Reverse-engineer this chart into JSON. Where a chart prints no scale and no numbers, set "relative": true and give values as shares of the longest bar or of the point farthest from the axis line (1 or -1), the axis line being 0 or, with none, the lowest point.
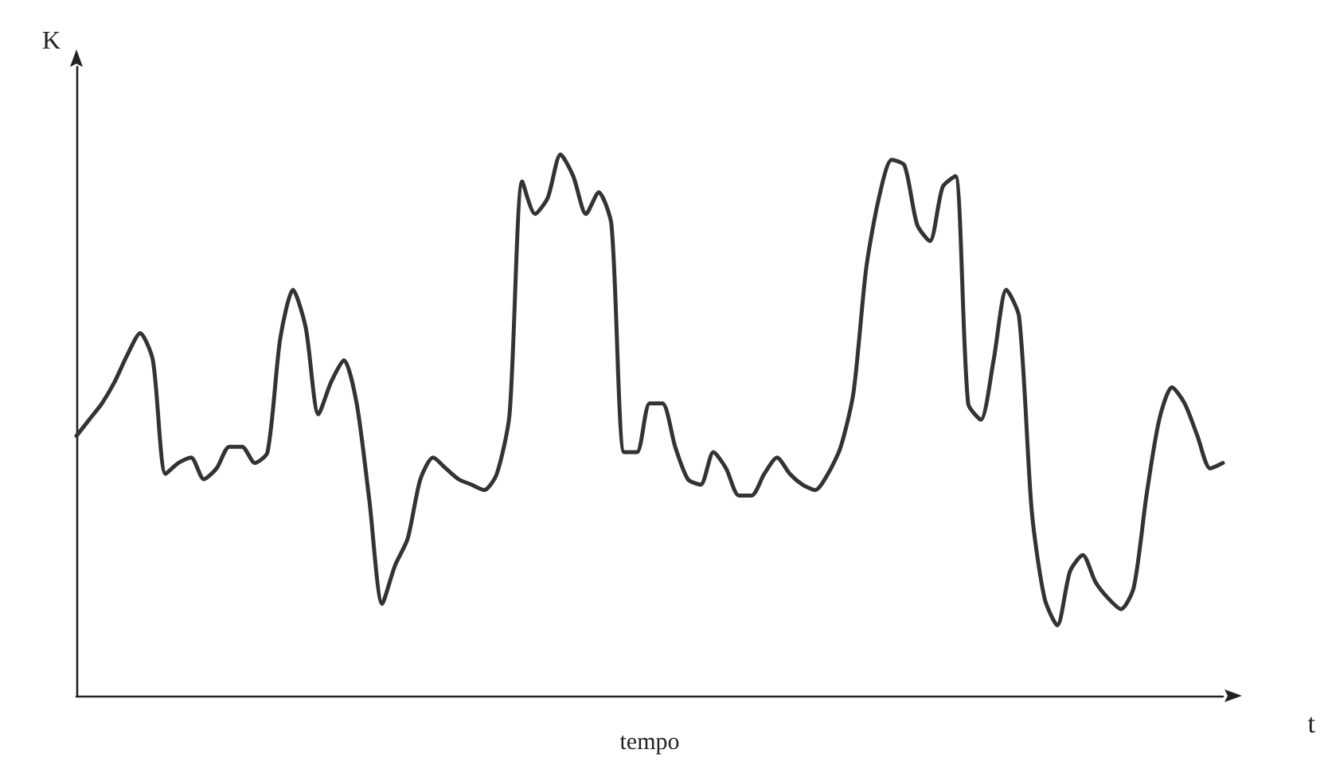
{
  "chart_data": {
    "type": "line",
    "relative": true,
    "xlabel": "tempo",
    "ylabel": "K",
    "annotations": [
      "t"
    ],
    "categories": [
      null,
      null,
      null,
      null,
      null,
      null,
      null,
      null,
      null,
      null,
      null,
      null,
      null,
      null,
      null,
      null,
      null,
      null,
      null,
      null,
      null,
      null,
      null,
      null,
      null,
      null,
      null,
      null,
      null,
      null,
      null,
      null,
      null,
      null,
      null,
      null,
      null,
      null,
      null,
      null,
      null,
      null,
      null,
      null,
      null,
      null,
      null,
      null,
      null,
      null,
      null,
      null,
      null,
      null,
      null,
      null,
      null,
      null,
      null,
      null,
      null,
      null,
      null,
      null,
      null,
      null,
      null,
      null,
      null,
      null,
      null,
      null,
      null,
      null,
      null,
      null,
      null,
      null,
      null,
      null,
      null,
      null,
      null,
      null,
      null,
      null,
      null,
      null,
      null,
      null,
      null
    ],
    "series": [
      {
        "color": "#333333",
        "values": [
          0.48,
          0.51,
          0.54,
          0.58,
          0.63,
          0.67,
          0.62,
          0.41,
          0.43,
          0.44,
          0.4,
          0.42,
          0.46,
          0.46,
          0.43,
          0.45,
          0.66,
          0.75,
          0.68,
          0.52,
          0.58,
          0.62,
          0.54,
          0.36,
          0.17,
          0.24,
          0.29,
          0.4,
          0.44,
          0.42,
          0.4,
          0.39,
          0.38,
          0.41,
          0.52,
          0.95,
          0.89,
          0.92,
          1,
          0.96,
          0.89,
          0.93,
          0.87,
          0.45,
          0.45,
          0.54,
          0.54,
          0.46,
          0.4,
          0.39,
          0.45,
          0.42,
          0.37,
          0.37,
          0.41,
          0.44,
          0.41,
          0.39,
          0.38,
          0.41,
          0.46,
          0.56,
          0.79,
          0.92,
          0.99,
          0.98,
          0.87,
          0.84,
          0.94,
          0.96,
          0.54,
          0.51,
          0.62,
          0.75,
          0.7,
          0.34,
          0.18,
          0.13,
          0.23,
          0.26,
          0.21,
          0.18,
          0.16,
          0.2,
          0.37,
          0.51,
          0.57,
          0.54,
          0.48,
          0.42,
          0.43
        ]
      }
    ]
  }
}
